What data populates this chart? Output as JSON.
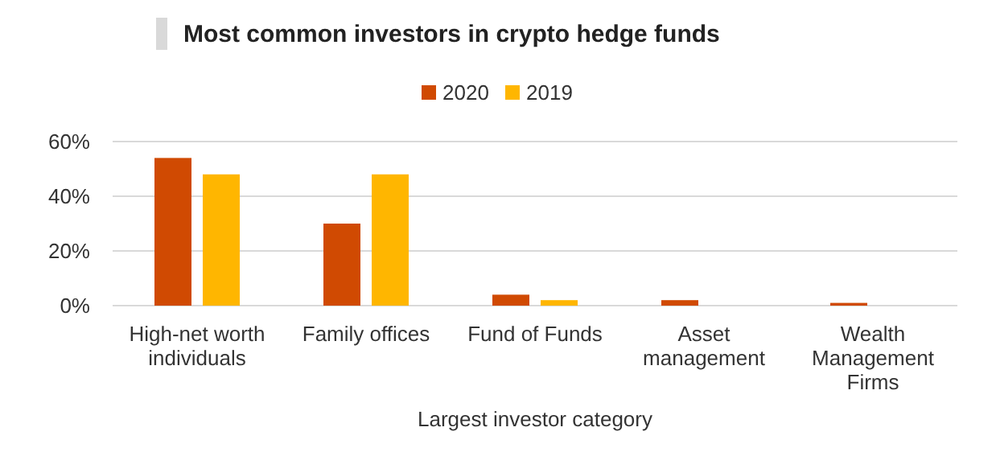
{
  "chart_data": {
    "type": "bar",
    "title": "Most common investors in crypto hedge funds",
    "xlabel": "Largest investor category",
    "categories": [
      "High-net worth individuals",
      "Family offices",
      "Fund of Funds",
      "Asset management",
      "Wealth Management Firms"
    ],
    "series": [
      {
        "name": "2020",
        "color": "#d04a02",
        "values": [
          54,
          30,
          4,
          2,
          1
        ]
      },
      {
        "name": "2019",
        "color": "#ffb600",
        "values": [
          48,
          48,
          2,
          null,
          null
        ]
      }
    ],
    "ylim": [
      0,
      60
    ],
    "yticks": [
      {
        "value": 0,
        "label": "0%"
      },
      {
        "value": 20,
        "label": "20%"
      },
      {
        "value": 40,
        "label": "40%"
      },
      {
        "value": 60,
        "label": "60%"
      }
    ],
    "grid": "y",
    "legend": "top"
  }
}
